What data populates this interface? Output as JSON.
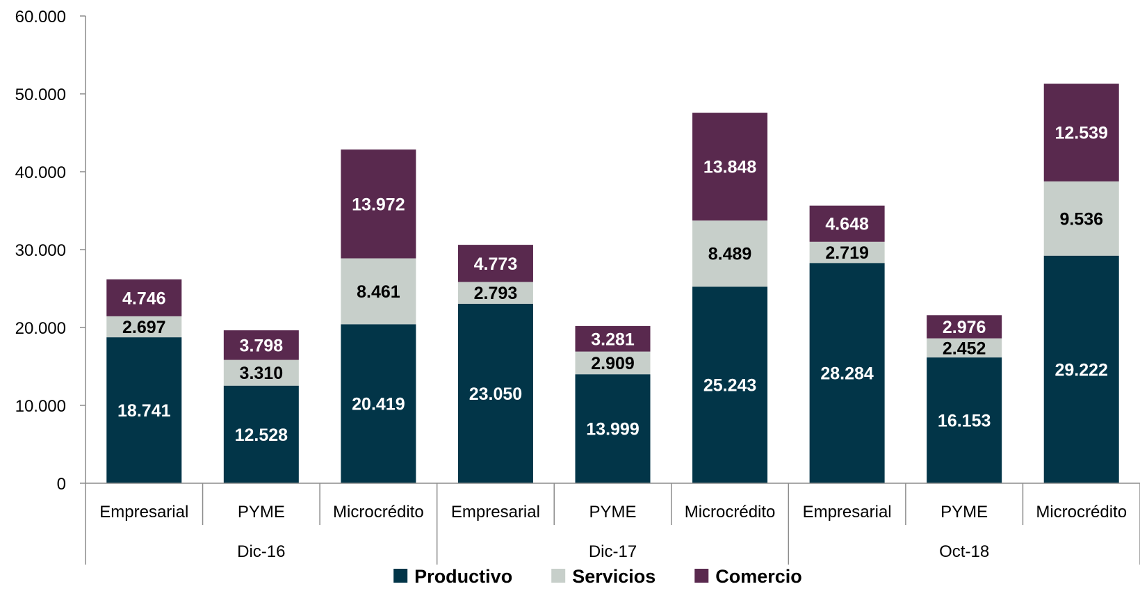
{
  "chart_data": {
    "type": "bar",
    "stacked": true,
    "groups": [
      {
        "label": "Dic-16",
        "categories": [
          "Empresarial",
          "PYME",
          "Microcrédito"
        ]
      },
      {
        "label": "Dic-17",
        "categories": [
          "Empresarial",
          "PYME",
          "Microcrédito"
        ]
      },
      {
        "label": "Oct-18",
        "categories": [
          "Empresarial",
          "PYME",
          "Microcrédito"
        ]
      }
    ],
    "series": [
      {
        "name": "Productivo",
        "color": "#023548",
        "values": [
          18741,
          12528,
          20419,
          23050,
          13999,
          25243,
          28284,
          16153,
          29222
        ],
        "labels": [
          "18.741",
          "12.528",
          "20.419",
          "23.050",
          "13.999",
          "25.243",
          "28.284",
          "16.153",
          "29.222"
        ],
        "label_color": "#ffffff"
      },
      {
        "name": "Servicios",
        "color": "#c7cfca",
        "values": [
          2697,
          3310,
          8461,
          2793,
          2909,
          8489,
          2719,
          2452,
          9536
        ],
        "labels": [
          "2.697",
          "3.310",
          "8.461",
          "2.793",
          "2.909",
          "8.489",
          "2.719",
          "2.452",
          "9.536"
        ],
        "label_color": "#000000"
      },
      {
        "name": "Comercio",
        "color": "#59294e",
        "values": [
          4746,
          3798,
          13972,
          4773,
          3281,
          13848,
          4648,
          2976,
          12539
        ],
        "labels": [
          "4.746",
          "3.798",
          "13.972",
          "4.773",
          "3.281",
          "13.848",
          "4.648",
          "2.976",
          "12.539"
        ],
        "label_color": "#ffffff"
      }
    ],
    "y_ticks": [
      0,
      10000,
      20000,
      30000,
      40000,
      50000,
      60000
    ],
    "y_tick_labels": [
      "0",
      "10.000",
      "20.000",
      "30.000",
      "40.000",
      "50.000",
      "60.000"
    ],
    "ylim": [
      0,
      60000
    ],
    "legend_position": "bottom",
    "grid": false,
    "title": "",
    "xlabel": "",
    "ylabel": ""
  }
}
